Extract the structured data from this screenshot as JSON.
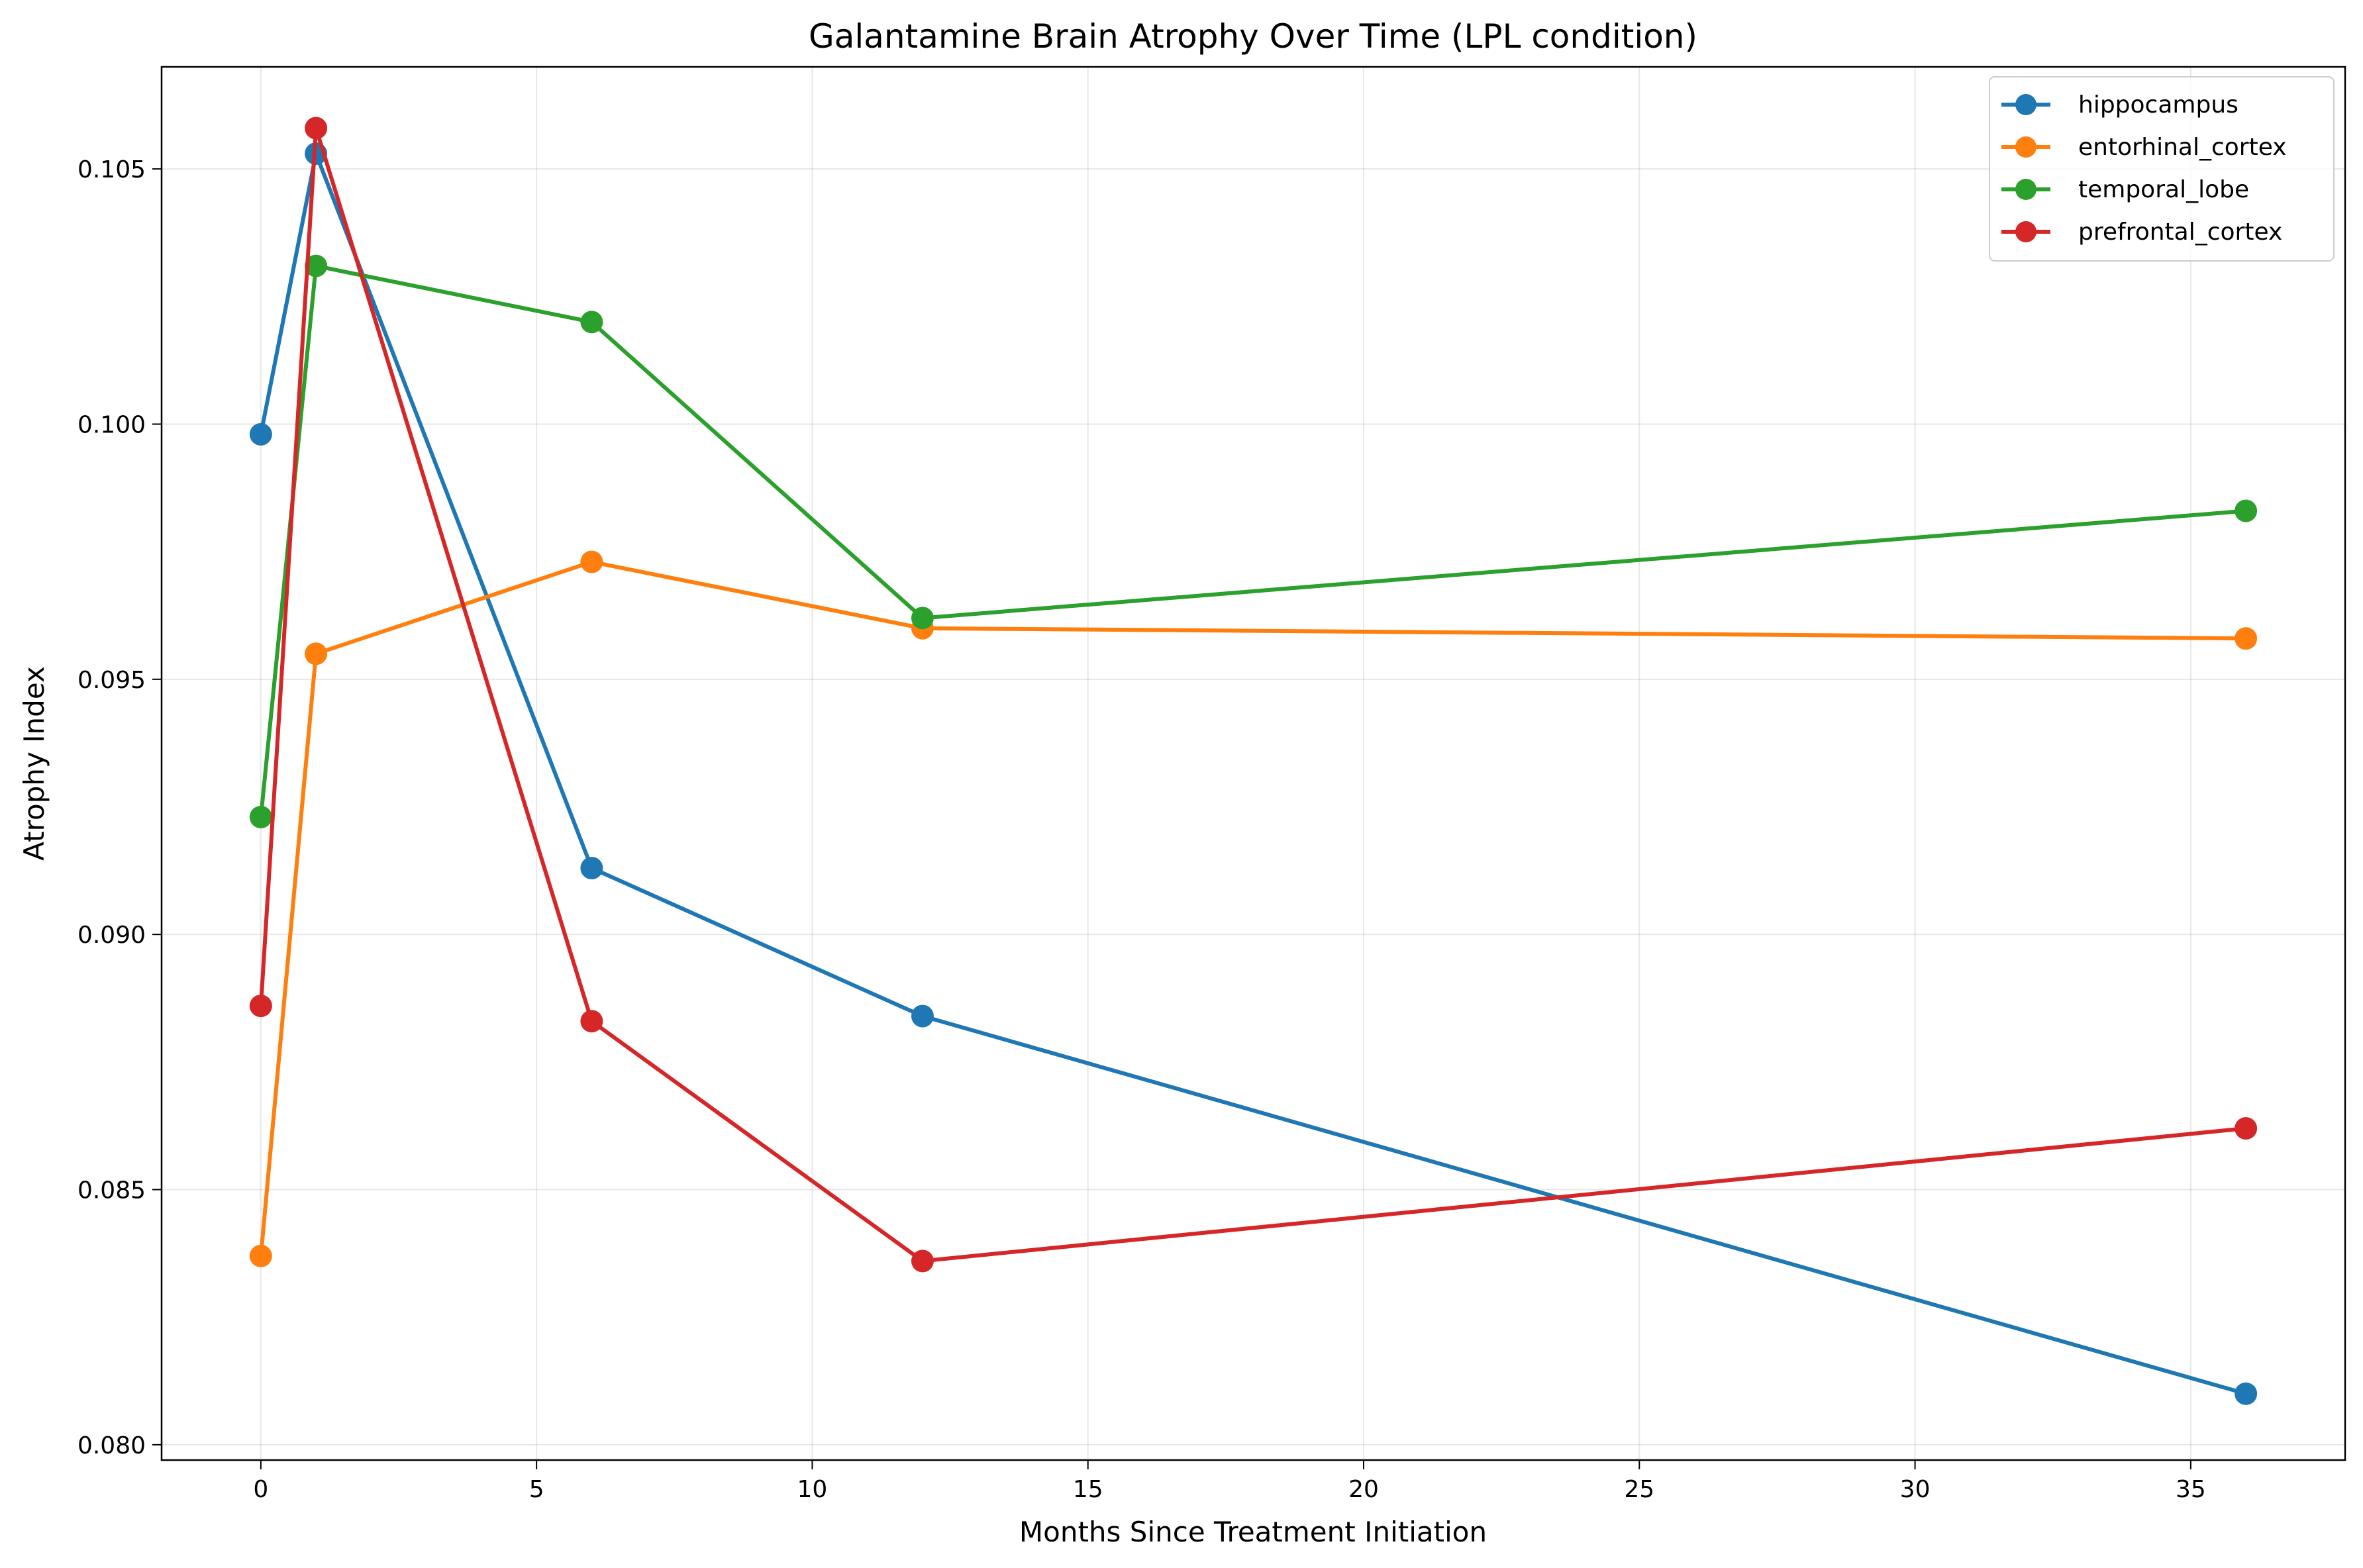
{
  "chart_data": {
    "type": "line",
    "title": "Galantamine Brain Atrophy Over Time (LPL condition)",
    "xlabel": "Months Since Treatment Initiation",
    "ylabel": "Atrophy Index",
    "xlim": [
      -1.8,
      37.8
    ],
    "ylim": [
      0.0797,
      0.107
    ],
    "x_ticks": [
      0,
      5,
      10,
      15,
      20,
      25,
      30,
      35
    ],
    "x_tick_labels": [
      "0",
      "5",
      "10",
      "15",
      "20",
      "25",
      "30",
      "35"
    ],
    "y_ticks": [
      0.08,
      0.085,
      0.09,
      0.095,
      0.1,
      0.105
    ],
    "y_tick_labels": [
      "0.080",
      "0.085",
      "0.090",
      "0.095",
      "0.100",
      "0.105"
    ],
    "grid": true,
    "legend_position": "top-right",
    "x": [
      0,
      1,
      6,
      12,
      36
    ],
    "series": [
      {
        "name": "hippocampus",
        "color": "#1f77b4",
        "values": [
          0.0998,
          0.1053,
          0.0913,
          0.0884,
          0.081
        ]
      },
      {
        "name": "entorhinal_cortex",
        "color": "#ff7f0e",
        "values": [
          0.0837,
          0.0955,
          0.0973,
          0.096,
          0.0958
        ]
      },
      {
        "name": "temporal_lobe",
        "color": "#2ca02c",
        "values": [
          0.0923,
          0.1031,
          0.102,
          0.0962,
          0.0983
        ]
      },
      {
        "name": "prefrontal_cortex",
        "color": "#d62728",
        "values": [
          0.0886,
          0.1058,
          0.0883,
          0.0836,
          0.0862
        ]
      }
    ]
  }
}
